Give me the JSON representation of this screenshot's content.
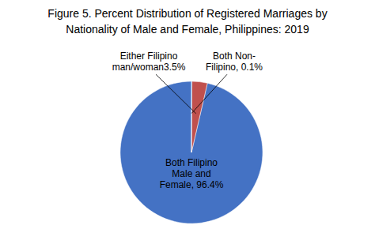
{
  "chart_data": {
    "type": "pie",
    "title": "Figure 5. Percent Distribution of Registered Marriages by\nNationality of Male and Female, Philippines: 2019",
    "categories": [
      "Both Filipino\nMale and\nFemale, 96.4%",
      "Either Filipino\nman/woman3.5%",
      "Both Non-\nFilipino, 0.1%"
    ],
    "values": [
      96.4,
      3.5,
      0.1
    ],
    "colors": [
      "#4472C4",
      "#C0504D",
      "#4472C4"
    ]
  }
}
